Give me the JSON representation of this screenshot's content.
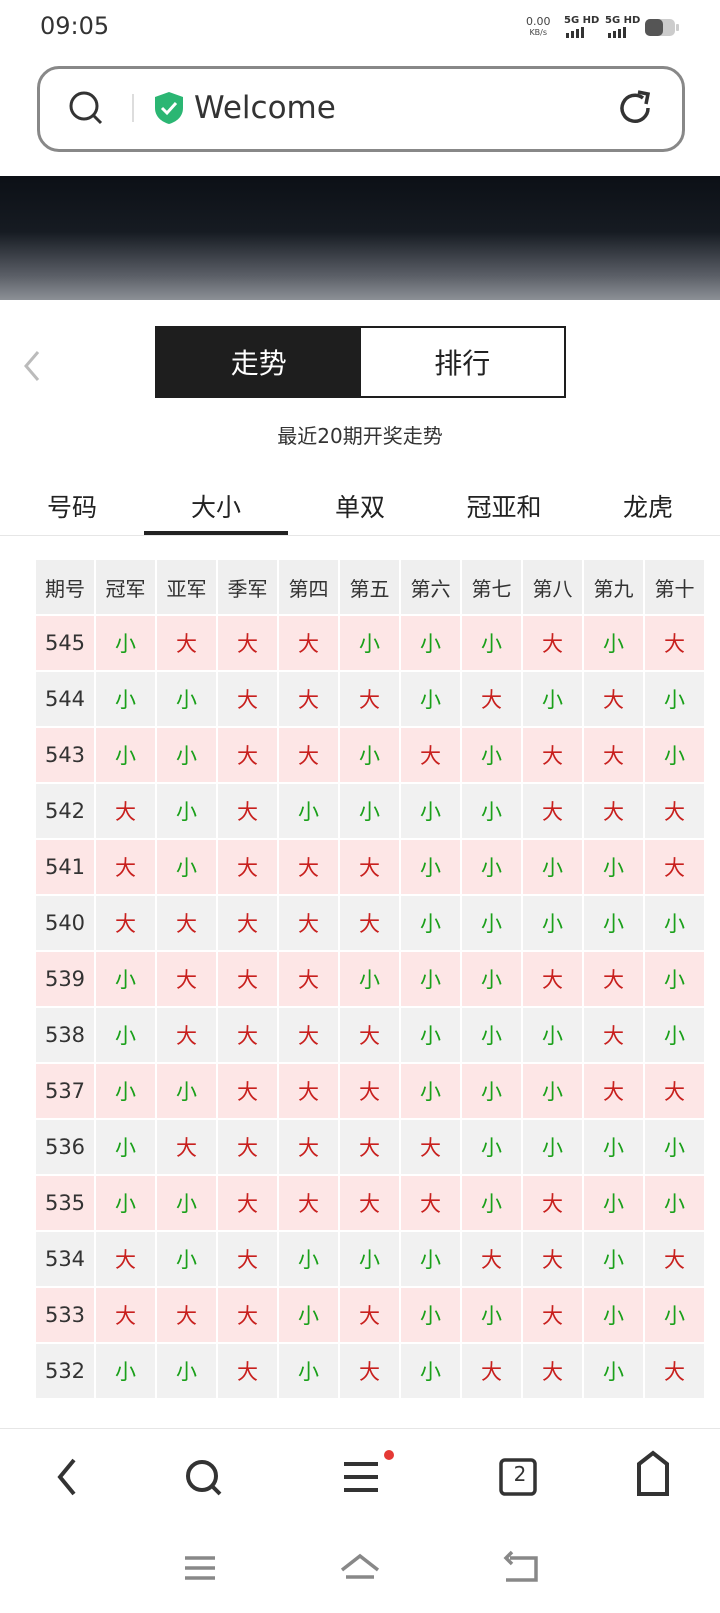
{
  "status_bar": {
    "time": "09:05",
    "speed": "0.00",
    "speed_unit": "KB/s",
    "network": [
      "5G HD",
      "5G HD"
    ]
  },
  "address_bar": {
    "text": "Welcome"
  },
  "toggle": {
    "options": [
      "走势",
      "排行"
    ],
    "active": 0
  },
  "subtitle": "最近20期开奖走势",
  "tabs": {
    "items": [
      "号码",
      "大小",
      "单双",
      "冠亚和",
      "龙虎"
    ],
    "active": 1
  },
  "table": {
    "header": [
      "期号",
      "冠军",
      "亚军",
      "季军",
      "第四",
      "第五",
      "第六",
      "第七",
      "第八",
      "第九",
      "第十"
    ],
    "big": "大",
    "rows": [
      [
        "545",
        "小",
        "大",
        "大",
        "大",
        "小",
        "小",
        "小",
        "大",
        "小",
        "大"
      ],
      [
        "544",
        "小",
        "小",
        "大",
        "大",
        "大",
        "小",
        "大",
        "小",
        "大",
        "小"
      ],
      [
        "543",
        "小",
        "小",
        "大",
        "大",
        "小",
        "大",
        "小",
        "大",
        "大",
        "小"
      ],
      [
        "542",
        "大",
        "小",
        "大",
        "小",
        "小",
        "小",
        "小",
        "大",
        "大",
        "大"
      ],
      [
        "541",
        "大",
        "小",
        "大",
        "大",
        "大",
        "小",
        "小",
        "小",
        "小",
        "大"
      ],
      [
        "540",
        "大",
        "大",
        "大",
        "大",
        "大",
        "小",
        "小",
        "小",
        "小",
        "小"
      ],
      [
        "539",
        "小",
        "大",
        "大",
        "大",
        "小",
        "小",
        "小",
        "大",
        "大",
        "小"
      ],
      [
        "538",
        "小",
        "大",
        "大",
        "大",
        "大",
        "小",
        "小",
        "小",
        "大",
        "小"
      ],
      [
        "537",
        "小",
        "小",
        "大",
        "大",
        "大",
        "小",
        "小",
        "小",
        "大",
        "大"
      ],
      [
        "536",
        "小",
        "大",
        "大",
        "大",
        "大",
        "大",
        "小",
        "小",
        "小",
        "小"
      ],
      [
        "535",
        "小",
        "小",
        "大",
        "大",
        "大",
        "大",
        "小",
        "大",
        "小",
        "小"
      ],
      [
        "534",
        "大",
        "小",
        "大",
        "小",
        "小",
        "小",
        "大",
        "大",
        "小",
        "大"
      ],
      [
        "533",
        "大",
        "大",
        "大",
        "小",
        "大",
        "小",
        "小",
        "大",
        "小",
        "小"
      ],
      [
        "532",
        "小",
        "小",
        "大",
        "小",
        "大",
        "小",
        "大",
        "大",
        "小",
        "大"
      ]
    ]
  },
  "bottom_nav": {
    "tab_count": "2"
  }
}
